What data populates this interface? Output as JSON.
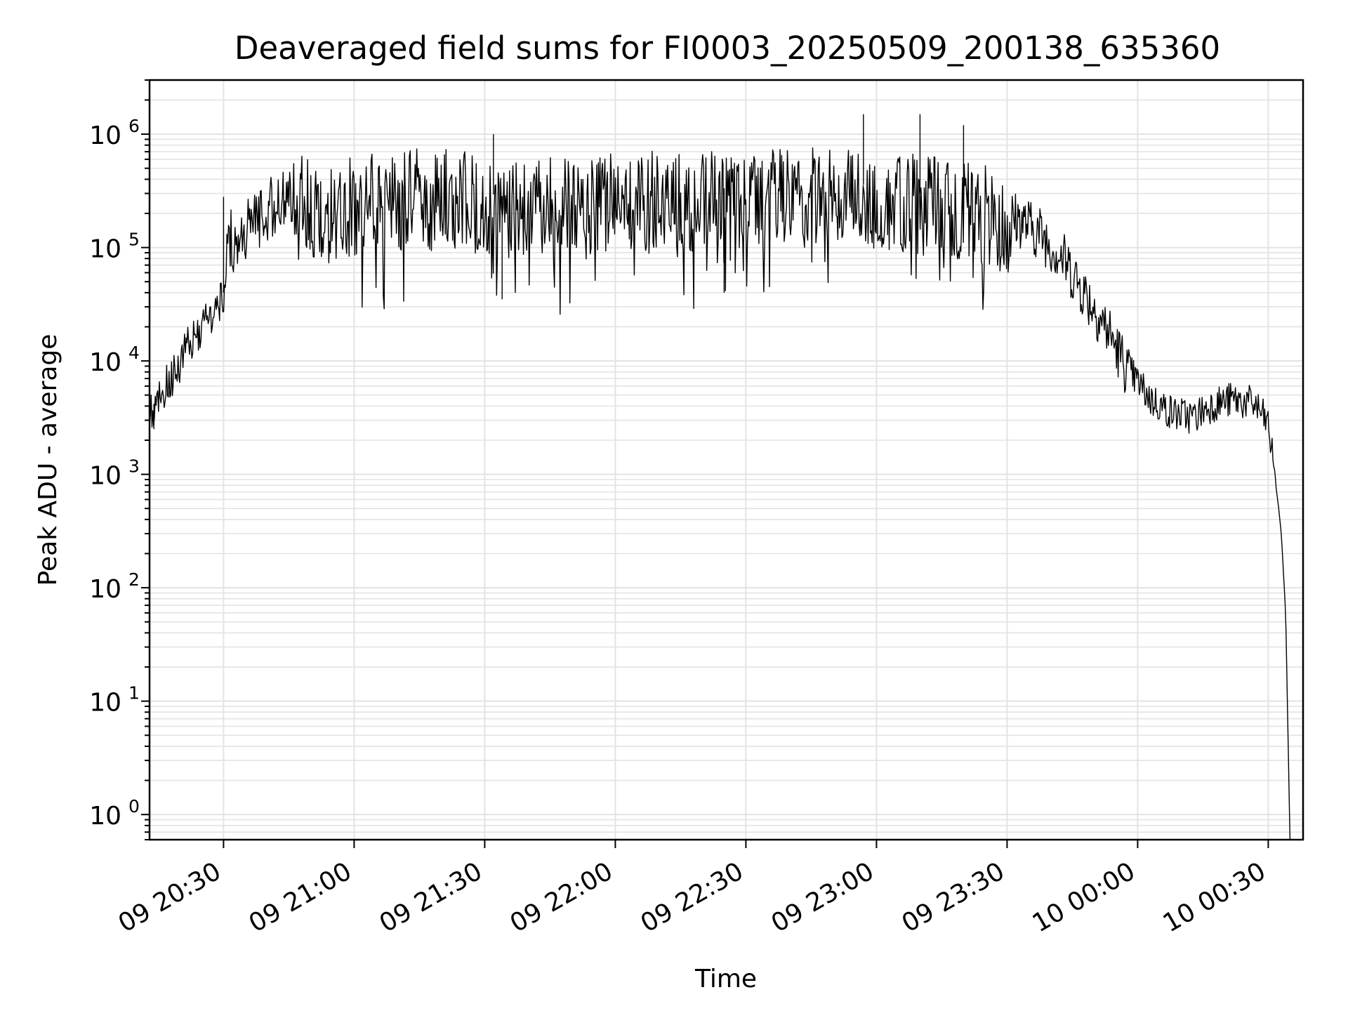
{
  "chart_data": {
    "type": "line",
    "title": "Deaveraged field sums for FI0003_20250509_200138_635360",
    "xlabel": "Time",
    "ylabel": "Peak ADU - average",
    "yscale": "log",
    "ylim": [
      0.6,
      3000000
    ],
    "xlim": [
      "2025-05-09 20:13",
      "2025-05-10 00:38"
    ],
    "grid": true,
    "line_color": "#000000",
    "grid_color": "#e3e3e3",
    "x_ticks": [
      {
        "t": "2025-05-09 20:30",
        "label": "09 20:30"
      },
      {
        "t": "2025-05-09 21:00",
        "label": "09 21:00"
      },
      {
        "t": "2025-05-09 21:30",
        "label": "09 21:30"
      },
      {
        "t": "2025-05-09 22:00",
        "label": "09 22:00"
      },
      {
        "t": "2025-05-09 22:30",
        "label": "09 22:30"
      },
      {
        "t": "2025-05-09 23:00",
        "label": "09 23:00"
      },
      {
        "t": "2025-05-09 23:30",
        "label": "09 23:30"
      },
      {
        "t": "2025-05-10 00:00",
        "label": "10 00:00"
      },
      {
        "t": "2025-05-10 00:30",
        "label": "10 00:30"
      }
    ],
    "y_ticks": [
      {
        "value": 1,
        "base": "10",
        "exp": "0"
      },
      {
        "value": 10,
        "base": "10",
        "exp": "1"
      },
      {
        "value": 100,
        "base": "10",
        "exp": "2"
      },
      {
        "value": 1000,
        "base": "10",
        "exp": "3"
      },
      {
        "value": 10000,
        "base": "10",
        "exp": "4"
      },
      {
        "value": 100000,
        "base": "10",
        "exp": "5"
      },
      {
        "value": 1000000,
        "base": "10",
        "exp": "6"
      }
    ],
    "series": [
      {
        "points": [
          [
            "2025-05-09 20:13",
            3500
          ],
          [
            "2025-05-09 20:16",
            6000
          ],
          [
            "2025-05-09 20:19",
            9000
          ],
          [
            "2025-05-09 20:22",
            15000
          ],
          [
            "2025-05-09 20:25",
            22000
          ],
          [
            "2025-05-09 20:28",
            30000
          ],
          [
            "2025-05-09 20:30",
            40000
          ],
          [
            "2025-05-09 20:31",
            150000
          ],
          [
            "2025-05-09 20:33",
            110000
          ],
          [
            "2025-05-09 20:35",
            170000
          ],
          [
            "2025-05-09 20:38",
            220000
          ],
          [
            "2025-05-09 20:42",
            280000
          ],
          [
            "2025-05-09 20:47",
            300000
          ],
          [
            "2025-05-09 20:55",
            280000
          ],
          [
            "2025-05-09 21:05",
            330000
          ],
          [
            "2025-05-09 21:15",
            350000
          ],
          [
            "2025-05-09 21:25",
            330000
          ],
          [
            "2025-05-09 21:35",
            280000
          ],
          [
            "2025-05-09 21:50",
            300000
          ],
          [
            "2025-05-09 22:05",
            320000
          ],
          [
            "2025-05-09 22:20",
            330000
          ],
          [
            "2025-05-09 22:35",
            340000
          ],
          [
            "2025-05-09 22:50",
            380000
          ],
          [
            "2025-05-09 23:05",
            330000
          ],
          [
            "2025-05-09 23:15",
            280000
          ],
          [
            "2025-05-09 23:25",
            250000
          ],
          [
            "2025-05-09 23:33",
            200000
          ],
          [
            "2025-05-09 23:38",
            150000
          ],
          [
            "2025-05-09 23:43",
            90000
          ],
          [
            "2025-05-09 23:48",
            45000
          ],
          [
            "2025-05-09 23:53",
            22000
          ],
          [
            "2025-05-09 23:58",
            9000
          ],
          [
            "2025-05-10 00:03",
            5000
          ],
          [
            "2025-05-10 00:08",
            3800
          ],
          [
            "2025-05-10 00:13",
            3500
          ],
          [
            "2025-05-10 00:17",
            4500
          ],
          [
            "2025-05-10 00:22",
            5000
          ],
          [
            "2025-05-10 00:27",
            4500
          ],
          [
            "2025-05-10 00:30",
            3000
          ],
          [
            "2025-05-10 00:31",
            1500
          ],
          [
            "2025-05-10 00:32",
            700
          ],
          [
            "2025-05-10 00:33",
            300
          ],
          [
            "2025-05-10 00:34",
            60
          ],
          [
            "2025-05-10 00:35",
            0.6
          ]
        ],
        "spikes": [
          [
            "2025-05-09 21:32",
            1000000
          ],
          [
            "2025-05-09 22:57",
            1500000
          ],
          [
            "2025-05-09 23:10",
            1500000
          ],
          [
            "2025-05-09 23:20",
            1200000
          ],
          [
            "2025-05-09 21:34",
            35000
          ],
          [
            "2025-05-09 22:25",
            40000
          ],
          [
            "2025-05-09 20:30",
            280000
          ],
          [
            "2025-05-09 20:14",
            2500
          ]
        ]
      }
    ]
  }
}
